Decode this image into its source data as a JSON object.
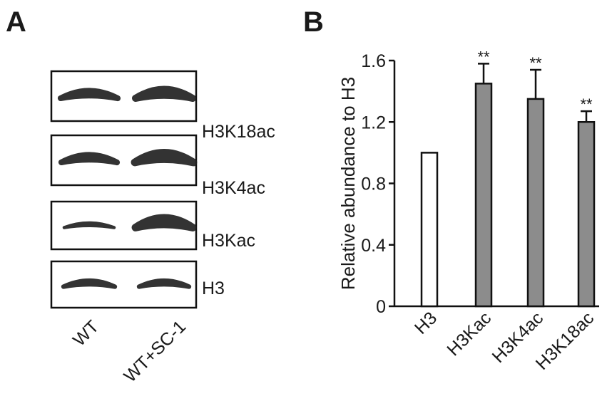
{
  "panel_a": {
    "label": "A",
    "blots": [
      "H3K18ac",
      "H3K4ac",
      "H3Kac",
      "H3"
    ],
    "lanes": [
      "WT",
      "WT+SC-1"
    ]
  },
  "chart_data": {
    "type": "bar",
    "label": "B",
    "ylabel": "Relative abundance to H3",
    "categories": [
      "H3",
      "H3Kac",
      "H3K4ac",
      "H3K18ac"
    ],
    "values": [
      1.0,
      1.45,
      1.35,
      1.2
    ],
    "errors": [
      null,
      0.13,
      0.19,
      0.07
    ],
    "annotations": [
      null,
      "**",
      "**",
      "**"
    ],
    "colors": [
      "#ffffff",
      "#8c8c8c",
      "#8c8c8c",
      "#8c8c8c"
    ],
    "ylim": [
      0,
      1.6
    ],
    "yticks": [
      0,
      0.4,
      0.8,
      1.2,
      1.6
    ]
  }
}
